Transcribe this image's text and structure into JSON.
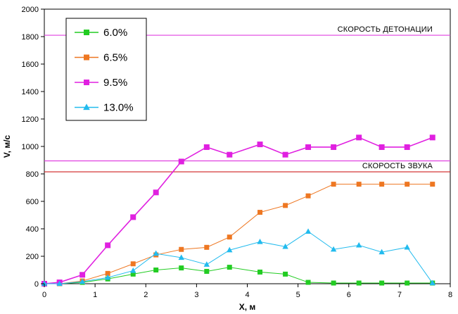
{
  "chart_data": {
    "type": "line",
    "xlabel": "X, м",
    "ylabel": "V, м/с",
    "xlim": [
      0,
      8
    ],
    "ylim": [
      0,
      2000
    ],
    "xticks": [
      0,
      1,
      2,
      3,
      4,
      5,
      6,
      7,
      8
    ],
    "yticks": [
      0,
      200,
      400,
      600,
      800,
      1000,
      1200,
      1400,
      1600,
      1800,
      2000
    ],
    "grid": false,
    "legend_position": "top-left",
    "reference_lines": [
      {
        "label": "СКОРОСТЬ ДЕТОНАЦИИ",
        "y": 1810,
        "color": "#e040e0"
      },
      {
        "label": "",
        "y": 895,
        "color": "#e040e0"
      },
      {
        "label": "СКОРОСТЬ ЗВУКА",
        "y": 815,
        "color": "#d02020"
      }
    ],
    "series": [
      {
        "name": "6.0%",
        "color": "#22cc22",
        "marker": "square",
        "x": [
          0,
          0.3,
          0.75,
          1.25,
          1.75,
          2.2,
          2.7,
          3.2,
          3.65,
          4.25,
          4.75,
          5.2,
          5.7,
          6.2,
          6.65,
          7.15,
          7.65
        ],
        "y": [
          0,
          0,
          10,
          35,
          70,
          100,
          115,
          90,
          120,
          85,
          70,
          10,
          5,
          5,
          5,
          5,
          5
        ]
      },
      {
        "name": "6.5%",
        "color": "#ee7722",
        "marker": "square",
        "x": [
          0,
          0.3,
          0.75,
          1.25,
          1.75,
          2.2,
          2.7,
          3.2,
          3.65,
          4.25,
          4.75,
          5.2,
          5.7,
          6.2,
          6.65,
          7.15,
          7.65
        ],
        "y": [
          0,
          0,
          20,
          75,
          145,
          210,
          250,
          265,
          340,
          520,
          570,
          640,
          725,
          725,
          725,
          725,
          725
        ]
      },
      {
        "name": "9.5%",
        "color": "#e020e0",
        "marker": "square",
        "x": [
          0,
          0.3,
          0.75,
          1.25,
          1.75,
          2.2,
          2.7,
          3.2,
          3.65,
          4.25,
          4.75,
          5.2,
          5.7,
          6.2,
          6.65,
          7.15,
          7.65
        ],
        "y": [
          0,
          10,
          65,
          280,
          485,
          665,
          890,
          995,
          940,
          1015,
          940,
          995,
          995,
          1065,
          995,
          995,
          1065
        ]
      },
      {
        "name": "13.0%",
        "color": "#22bbee",
        "marker": "triangle",
        "x": [
          0,
          0.3,
          0.75,
          1.25,
          1.75,
          2.2,
          2.7,
          3.2,
          3.65,
          4.25,
          4.75,
          5.2,
          5.7,
          6.2,
          6.65,
          7.15,
          7.65
        ],
        "y": [
          0,
          0,
          15,
          45,
          95,
          220,
          190,
          140,
          245,
          305,
          270,
          380,
          250,
          280,
          230,
          265,
          5
        ]
      }
    ]
  }
}
